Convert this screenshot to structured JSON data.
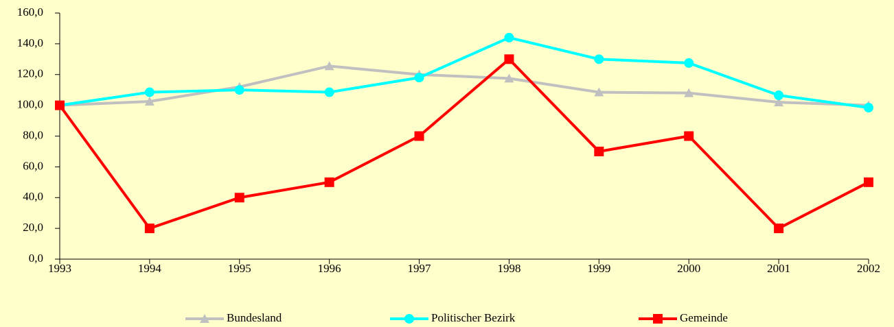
{
  "chart_data": {
    "type": "line",
    "categories": [
      "1993",
      "1994",
      "1995",
      "1996",
      "1997",
      "1998",
      "1999",
      "2000",
      "2001",
      "2002"
    ],
    "series": [
      {
        "name": "Bundesland",
        "color": "#c0c0c0",
        "marker": "triangle",
        "values": [
          100,
          102.5,
          112,
          125.5,
          120,
          117.5,
          108.5,
          108,
          102,
          100
        ]
      },
      {
        "name": "Politischer Bezirk",
        "color": "#00ffff",
        "marker": "circle",
        "values": [
          100,
          108.5,
          110,
          108.5,
          118,
          144,
          130,
          127.5,
          106.5,
          98.5
        ]
      },
      {
        "name": "Gemeinde",
        "color": "#ff0000",
        "marker": "square",
        "values": [
          100,
          20,
          40,
          50,
          80,
          130,
          70,
          80,
          20,
          50
        ]
      }
    ],
    "ylim": [
      0,
      160
    ],
    "yticks": [
      {
        "value": 0,
        "label": "0,0"
      },
      {
        "value": 20,
        "label": "20,0"
      },
      {
        "value": 40,
        "label": "40,0"
      },
      {
        "value": 60,
        "label": "60,0"
      },
      {
        "value": 80,
        "label": "80,0"
      },
      {
        "value": 100,
        "label": "100,0"
      },
      {
        "value": 120,
        "label": "120,0"
      },
      {
        "value": 140,
        "label": "140,0"
      },
      {
        "value": 160,
        "label": "160,0"
      }
    ],
    "legend": "bottom"
  }
}
